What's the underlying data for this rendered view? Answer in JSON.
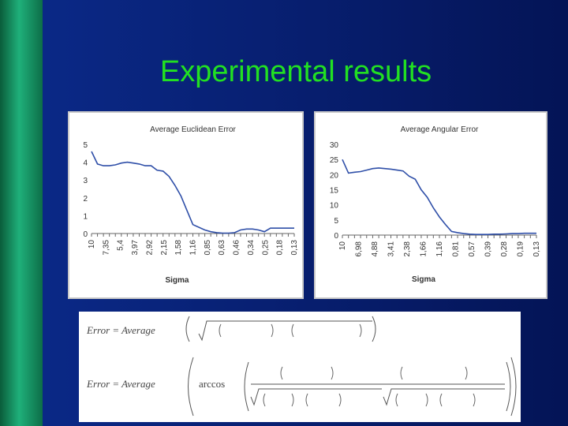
{
  "slide": {
    "title": "Experimental results"
  },
  "chart_data": [
    {
      "type": "line",
      "title": "Average Euclidean Error",
      "xlabel": "Sigma",
      "ylabel": "",
      "ylim": [
        0,
        5
      ],
      "yticks": [
        "0",
        "1",
        "2",
        "3",
        "4",
        "5"
      ],
      "xticks": [
        "10",
        "7,35",
        "5,4",
        "3,97",
        "2,92",
        "2,15",
        "1,58",
        "1,16",
        "0,85",
        "0,63",
        "0,46",
        "0,34",
        "0,25",
        "0,18",
        "0,13"
      ],
      "series": [
        {
          "values": [
            4.6,
            3.9,
            3.8,
            3.8,
            3.85,
            3.95,
            4.0,
            3.95,
            3.9,
            3.8,
            3.8,
            3.55,
            3.5,
            3.2,
            2.7,
            2.1,
            1.3,
            0.5,
            0.35,
            0.2,
            0.1,
            0.05,
            0.02,
            0.02,
            0.05,
            0.2,
            0.25,
            0.25,
            0.2,
            0.1,
            0.3,
            0.3,
            0.3,
            0.3,
            0.3
          ]
        }
      ],
      "color": "#2f4fa8"
    },
    {
      "type": "line",
      "title": "Average Angular Error",
      "xlabel": "Sigma",
      "ylabel": "",
      "ylim": [
        0,
        30
      ],
      "yticks": [
        "0",
        "5",
        "10",
        "15",
        "20",
        "25",
        "30"
      ],
      "xticks": [
        "10",
        "6,98",
        "4,88",
        "3,41",
        "2,38",
        "1,66",
        "1,16",
        "0,81",
        "0,57",
        "0,39",
        "0,28",
        "0,19",
        "0,13"
      ],
      "series": [
        {
          "values": [
            25.0,
            20.5,
            20.8,
            21.0,
            21.5,
            22.0,
            22.2,
            22.0,
            21.8,
            21.5,
            21.2,
            19.5,
            18.5,
            15.0,
            12.5,
            9.0,
            6.0,
            3.5,
            1.2,
            0.8,
            0.5,
            0.3,
            0.2,
            0.2,
            0.2,
            0.3,
            0.3,
            0.4,
            0.5,
            0.5,
            0.6,
            0.6,
            0.6
          ]
        }
      ],
      "color": "#2f4fa8"
    }
  ],
  "formulas": {
    "euclid_lhs": "Error = Average",
    "angular_lhs": "Error = Average",
    "arccos": "arccos"
  }
}
